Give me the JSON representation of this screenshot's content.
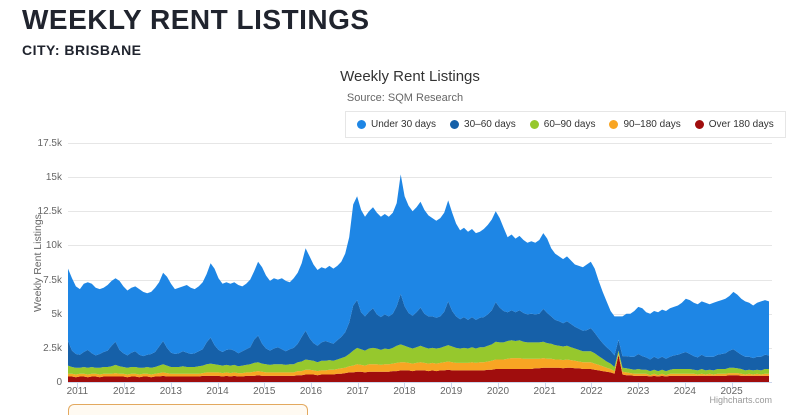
{
  "page": {
    "heading": "WEEKLY RENT LISTINGS",
    "subheading": "CITY: BRISBANE"
  },
  "chart": {
    "title": "Weekly Rent Listings",
    "subtitle": "Source: SQM Research",
    "credit": "Highcharts.com",
    "y_axis_title": "Weekly Rent Listings",
    "grid_color": "#e6e6e6",
    "axis_line_color": "#ccd6eb",
    "heading_color": "#20242e"
  },
  "chart_data": {
    "type": "area",
    "stacked": true,
    "title": "Weekly Rent Listings",
    "subtitle": "Source: SQM Research",
    "xlabel": "",
    "ylabel": "Weekly Rent Listings",
    "unit": "thousands of weekly rent listings",
    "x_start": 2010.8,
    "x_end": 2025.8,
    "frequency": "monthly samples (approximating weekly data), Jan 2011 - Oct 2025",
    "x_tick_labels": [
      "2011",
      "2012",
      "2013",
      "2014",
      "2015",
      "2016",
      "2017",
      "2018",
      "2019",
      "2020",
      "2021",
      "2022",
      "2023",
      "2024",
      "2025"
    ],
    "y_ticks": [
      0,
      2.5,
      5,
      7.5,
      10,
      12.5,
      15,
      17.5
    ],
    "y_tick_labels": [
      "0",
      "2.5k",
      "5k",
      "7.5k",
      "10k",
      "12.5k",
      "15k",
      "17.5k"
    ],
    "ylim": [
      0,
      17.5
    ],
    "legend_position": "top-right, boxed",
    "grid": "horizontal only",
    "stack_bottom_to_top": [
      "Over 180 days",
      "90–180 days",
      "60–90 days",
      "30–60 days",
      "Under 30 days"
    ],
    "series": [
      {
        "name": "Under 30 days",
        "color": "#1e86e5",
        "values": [
          5.3,
          5.3,
          4.95,
          4.8,
          5.0,
          4.95,
          5.1,
          4.95,
          4.75,
          4.7,
          4.8,
          4.75,
          4.65,
          5.05,
          4.9,
          4.75,
          4.75,
          4.75,
          4.8,
          4.7,
          4.5,
          4.55,
          4.7,
          4.7,
          5.0,
          5.2,
          5.05,
          4.75,
          4.8,
          4.75,
          4.95,
          4.85,
          4.7,
          4.75,
          4.9,
          5.0,
          5.45,
          5.6,
          5.25,
          5.0,
          4.95,
          4.8,
          5.0,
          5.0,
          4.75,
          4.8,
          4.95,
          5.0,
          5.4,
          5.6,
          5.35,
          5.1,
          5.15,
          4.95,
          5.2,
          5.15,
          4.9,
          5.1,
          5.2,
          5.4,
          6.05,
          6.0,
          5.75,
          5.55,
          5.5,
          5.3,
          5.6,
          5.5,
          5.45,
          5.5,
          5.75,
          6.25,
          7.4,
          7.6,
          7.5,
          7.3,
          7.35,
          7.4,
          7.45,
          7.35,
          7.35,
          7.3,
          7.4,
          7.55,
          8.75,
          8.05,
          7.85,
          7.65,
          7.7,
          7.75,
          7.6,
          7.4,
          7.2,
          7.1,
          7.2,
          7.25,
          7.4,
          7.2,
          6.8,
          6.5,
          6.55,
          6.45,
          6.45,
          6.35,
          6.3,
          6.45,
          6.55,
          6.65,
          6.65,
          6.55,
          6.1,
          5.5,
          5.55,
          5.4,
          5.45,
          5.35,
          5.25,
          5.3,
          5.25,
          5.4,
          5.55,
          5.45,
          5.0,
          4.85,
          4.75,
          4.7,
          4.75,
          4.65,
          4.55,
          4.6,
          4.65,
          4.8,
          4.85,
          4.7,
          4.2,
          3.75,
          3.35,
          2.9,
          2.85,
          1.7,
          2.9,
          3.1,
          3.15,
          3.35,
          3.45,
          3.5,
          3.3,
          3.35,
          3.35,
          3.4,
          3.45,
          3.5,
          3.55,
          3.55,
          3.6,
          3.7,
          3.9,
          3.95,
          3.9,
          3.9,
          3.9,
          3.95,
          3.85,
          3.95,
          3.9,
          3.95,
          4.0,
          4.0,
          4.2,
          4.2,
          4.1,
          4.05,
          3.95,
          3.85,
          3.95,
          4.05,
          4.0,
          3.95
        ]
      },
      {
        "name": "30–60 days",
        "color": "#1660a8",
        "values": [
          1.8,
          1.2,
          1.0,
          0.95,
          1.1,
          1.3,
          1.0,
          0.9,
          1.0,
          1.1,
          1.2,
          1.5,
          1.7,
          1.2,
          1.0,
          0.9,
          1.05,
          1.15,
          0.95,
          0.85,
          0.9,
          1.0,
          1.1,
          1.4,
          1.7,
          1.3,
          1.05,
          0.95,
          1.0,
          1.1,
          1.05,
          0.95,
          1.0,
          1.1,
          1.2,
          1.6,
          1.9,
          1.4,
          1.1,
          1.0,
          1.1,
          1.2,
          1.05,
          0.95,
          1.05,
          1.15,
          1.25,
          1.7,
          1.95,
          1.45,
          1.15,
          1.05,
          1.15,
          1.25,
          1.1,
          1.0,
          1.1,
          1.2,
          1.35,
          1.8,
          2.1,
          1.6,
          1.3,
          1.2,
          1.35,
          1.45,
          1.3,
          1.25,
          1.4,
          1.55,
          1.8,
          2.3,
          3.3,
          3.5,
          2.7,
          2.5,
          2.7,
          2.9,
          2.5,
          2.4,
          2.5,
          2.4,
          2.5,
          2.9,
          3.7,
          2.9,
          2.5,
          2.4,
          2.55,
          2.8,
          2.45,
          2.35,
          2.3,
          2.25,
          2.3,
          2.55,
          3.2,
          2.6,
          2.3,
          2.15,
          2.25,
          2.1,
          2.2,
          2.1,
          2.15,
          2.2,
          2.3,
          2.5,
          2.9,
          2.55,
          2.3,
          2.1,
          2.2,
          2.1,
          2.2,
          2.1,
          2.05,
          2.1,
          2.05,
          2.1,
          2.4,
          2.2,
          2.0,
          1.85,
          1.8,
          1.7,
          1.8,
          1.7,
          1.6,
          1.55,
          1.5,
          1.55,
          1.7,
          1.5,
          1.3,
          1.15,
          1.05,
          0.95,
          0.85,
          0.8,
          0.85,
          0.9,
          0.9,
          0.95,
          1.1,
          1.0,
          0.9,
          0.85,
          0.95,
          0.9,
          0.95,
          0.9,
          0.95,
          1.0,
          1.05,
          1.15,
          1.25,
          1.1,
          1.0,
          0.95,
          1.05,
          1.0,
          0.95,
          1.0,
          1.05,
          1.1,
          1.15,
          1.25,
          1.35,
          1.2,
          1.05,
          1.0,
          0.95,
          0.9,
          0.95,
          1.0,
          1.05,
          1.0
        ]
      },
      {
        "name": "60–90 days",
        "color": "#96c82d",
        "values": [
          0.6,
          0.5,
          0.5,
          0.45,
          0.5,
          0.5,
          0.5,
          0.45,
          0.5,
          0.5,
          0.5,
          0.55,
          0.6,
          0.55,
          0.5,
          0.5,
          0.5,
          0.5,
          0.5,
          0.45,
          0.5,
          0.5,
          0.5,
          0.55,
          0.6,
          0.55,
          0.5,
          0.5,
          0.5,
          0.55,
          0.5,
          0.5,
          0.5,
          0.55,
          0.55,
          0.6,
          0.65,
          0.6,
          0.55,
          0.55,
          0.55,
          0.55,
          0.55,
          0.5,
          0.55,
          0.55,
          0.6,
          0.65,
          0.65,
          0.6,
          0.6,
          0.55,
          0.6,
          0.6,
          0.6,
          0.55,
          0.6,
          0.6,
          0.65,
          0.7,
          0.75,
          0.7,
          0.7,
          0.65,
          0.7,
          0.7,
          0.7,
          0.65,
          0.7,
          0.75,
          0.8,
          0.9,
          1.1,
          1.2,
          1.15,
          1.1,
          1.15,
          1.2,
          1.15,
          1.1,
          1.15,
          1.1,
          1.15,
          1.25,
          1.3,
          1.2,
          1.15,
          1.1,
          1.15,
          1.2,
          1.15,
          1.1,
          1.1,
          1.1,
          1.1,
          1.15,
          1.2,
          1.15,
          1.1,
          1.05,
          1.1,
          1.05,
          1.1,
          1.05,
          1.1,
          1.1,
          1.15,
          1.2,
          1.3,
          1.25,
          1.25,
          1.3,
          1.3,
          1.25,
          1.3,
          1.25,
          1.2,
          1.2,
          1.2,
          1.2,
          1.2,
          1.15,
          1.1,
          1.05,
          1.0,
          1.0,
          1.0,
          0.95,
          0.9,
          0.85,
          0.8,
          0.8,
          0.8,
          0.75,
          0.65,
          0.55,
          0.45,
          0.4,
          0.3,
          0.2,
          0.3,
          0.3,
          0.3,
          0.3,
          0.35,
          0.3,
          0.3,
          0.3,
          0.3,
          0.3,
          0.3,
          0.3,
          0.3,
          0.35,
          0.35,
          0.35,
          0.35,
          0.35,
          0.3,
          0.3,
          0.35,
          0.3,
          0.3,
          0.3,
          0.35,
          0.35,
          0.35,
          0.4,
          0.4,
          0.35,
          0.35,
          0.3,
          0.3,
          0.3,
          0.3,
          0.3,
          0.35,
          0.35
        ]
      },
      {
        "name": "90–180 days",
        "color": "#f8a523",
        "values": [
          0.2,
          0.2,
          0.2,
          0.2,
          0.2,
          0.2,
          0.2,
          0.2,
          0.2,
          0.2,
          0.2,
          0.2,
          0.25,
          0.2,
          0.2,
          0.2,
          0.2,
          0.2,
          0.2,
          0.2,
          0.2,
          0.2,
          0.2,
          0.25,
          0.25,
          0.25,
          0.2,
          0.2,
          0.2,
          0.2,
          0.2,
          0.2,
          0.2,
          0.2,
          0.2,
          0.25,
          0.25,
          0.25,
          0.25,
          0.25,
          0.25,
          0.25,
          0.25,
          0.25,
          0.25,
          0.25,
          0.25,
          0.3,
          0.3,
          0.3,
          0.25,
          0.25,
          0.25,
          0.25,
          0.25,
          0.25,
          0.25,
          0.25,
          0.3,
          0.3,
          0.35,
          0.35,
          0.3,
          0.3,
          0.3,
          0.3,
          0.35,
          0.35,
          0.35,
          0.4,
          0.4,
          0.45,
          0.5,
          0.55,
          0.5,
          0.5,
          0.55,
          0.55,
          0.55,
          0.5,
          0.55,
          0.55,
          0.55,
          0.6,
          0.6,
          0.6,
          0.55,
          0.55,
          0.55,
          0.6,
          0.55,
          0.55,
          0.55,
          0.55,
          0.55,
          0.6,
          0.6,
          0.6,
          0.55,
          0.55,
          0.55,
          0.55,
          0.6,
          0.55,
          0.6,
          0.6,
          0.6,
          0.65,
          0.7,
          0.7,
          0.7,
          0.75,
          0.8,
          0.8,
          0.8,
          0.75,
          0.75,
          0.75,
          0.7,
          0.7,
          0.7,
          0.65,
          0.65,
          0.6,
          0.6,
          0.6,
          0.6,
          0.55,
          0.55,
          0.5,
          0.5,
          0.5,
          0.5,
          0.45,
          0.4,
          0.35,
          0.3,
          0.25,
          0.2,
          0.1,
          0.2,
          0.2,
          0.15,
          0.15,
          0.15,
          0.15,
          0.15,
          0.1,
          0.15,
          0.1,
          0.15,
          0.1,
          0.15,
          0.15,
          0.15,
          0.15,
          0.15,
          0.15,
          0.15,
          0.1,
          0.15,
          0.1,
          0.15,
          0.1,
          0.15,
          0.15,
          0.15,
          0.15,
          0.15,
          0.15,
          0.15,
          0.1,
          0.15,
          0.1,
          0.15,
          0.1,
          0.15,
          0.15
        ]
      },
      {
        "name": "Over 180 days",
        "color": "#a00d0d",
        "values": [
          0.4,
          0.4,
          0.35,
          0.4,
          0.4,
          0.35,
          0.4,
          0.4,
          0.35,
          0.4,
          0.4,
          0.4,
          0.4,
          0.4,
          0.4,
          0.35,
          0.4,
          0.4,
          0.35,
          0.4,
          0.4,
          0.35,
          0.4,
          0.4,
          0.45,
          0.4,
          0.4,
          0.4,
          0.4,
          0.4,
          0.4,
          0.4,
          0.4,
          0.4,
          0.45,
          0.45,
          0.45,
          0.45,
          0.45,
          0.4,
          0.45,
          0.4,
          0.45,
          0.4,
          0.4,
          0.45,
          0.45,
          0.45,
          0.5,
          0.45,
          0.45,
          0.45,
          0.45,
          0.45,
          0.45,
          0.45,
          0.45,
          0.45,
          0.5,
          0.5,
          0.55,
          0.55,
          0.55,
          0.5,
          0.55,
          0.55,
          0.55,
          0.55,
          0.6,
          0.6,
          0.65,
          0.7,
          0.7,
          0.75,
          0.75,
          0.7,
          0.75,
          0.75,
          0.75,
          0.75,
          0.75,
          0.75,
          0.8,
          0.8,
          0.85,
          0.85,
          0.85,
          0.8,
          0.85,
          0.85,
          0.85,
          0.8,
          0.85,
          0.8,
          0.85,
          0.85,
          0.9,
          0.85,
          0.85,
          0.85,
          0.85,
          0.85,
          0.85,
          0.85,
          0.85,
          0.85,
          0.9,
          0.9,
          0.95,
          0.95,
          0.95,
          0.95,
          0.95,
          0.95,
          0.95,
          0.95,
          0.95,
          0.95,
          1.0,
          1.0,
          1.05,
          1.05,
          1.05,
          1.05,
          1.05,
          1.0,
          1.05,
          1.05,
          1.0,
          1.0,
          0.95,
          0.95,
          0.95,
          0.9,
          0.85,
          0.8,
          0.75,
          0.7,
          0.6,
          2.0,
          0.55,
          0.5,
          0.5,
          0.45,
          0.45,
          0.45,
          0.45,
          0.4,
          0.45,
          0.4,
          0.45,
          0.4,
          0.45,
          0.45,
          0.45,
          0.45,
          0.45,
          0.45,
          0.45,
          0.45,
          0.45,
          0.45,
          0.45,
          0.45,
          0.45,
          0.45,
          0.45,
          0.5,
          0.5,
          0.5,
          0.45,
          0.45,
          0.45,
          0.45,
          0.45,
          0.45,
          0.45,
          0.45
        ]
      }
    ]
  }
}
